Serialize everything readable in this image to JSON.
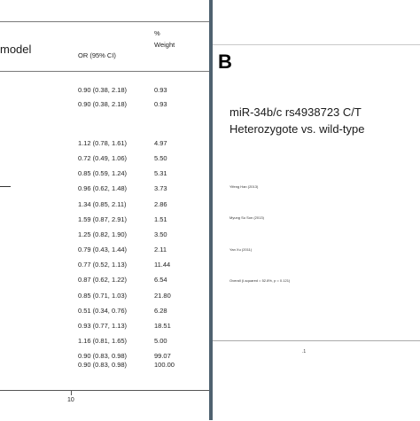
{
  "panel_a": {
    "model_label": "model",
    "col_or_header": "OR (95% CI)",
    "col_weight_header": [
      "%",
      "Weight"
    ]
  },
  "chart_data": [
    {
      "type": "table",
      "panel": "A",
      "columns": [
        "OR (95% CI)",
        "% Weight"
      ],
      "rows": [
        {
          "or": "0.90 (0.38, 2.18)",
          "weight": "0.93"
        },
        {
          "or": "0.90 (0.38, 2.18)",
          "weight": "0.93"
        },
        {
          "or": "1.12 (0.78, 1.61)",
          "weight": "4.97"
        },
        {
          "or": "0.72 (0.49, 1.06)",
          "weight": "5.50"
        },
        {
          "or": "0.85 (0.59, 1.24)",
          "weight": "5.31"
        },
        {
          "or": "0.96 (0.62, 1.48)",
          "weight": "3.73"
        },
        {
          "or": "1.34 (0.85, 2.11)",
          "weight": "2.86"
        },
        {
          "or": "1.59 (0.87, 2.91)",
          "weight": "1.51"
        },
        {
          "or": "1.25 (0.82, 1.90)",
          "weight": "3.50"
        },
        {
          "or": "0.79 (0.43, 1.44)",
          "weight": "2.11"
        },
        {
          "or": "0.77 (0.52, 1.13)",
          "weight": "11.44"
        },
        {
          "or": "0.87 (0.62, 1.22)",
          "weight": "6.54"
        },
        {
          "or": "0.85 (0.71, 1.03)",
          "weight": "21.80"
        },
        {
          "or": "0.51 (0.34, 0.76)",
          "weight": "6.28"
        },
        {
          "or": "0.93 (0.77, 1.13)",
          "weight": "18.51"
        },
        {
          "or": "1.16 (0.81, 1.65)",
          "weight": "5.00"
        },
        {
          "or": "0.90 (0.83, 0.98)",
          "weight": "99.07"
        },
        {
          "or": "0.90 (0.83, 0.98)",
          "weight": "100.00"
        }
      ],
      "x_tick_labels": [
        "10"
      ]
    },
    {
      "type": "scatter",
      "panel": "B",
      "panel_letter": "B",
      "title_lines": [
        "miR-34b/c rs4938723 C/T",
        "Heterozygote vs. wild-type"
      ],
      "study_labels": [
        "Yifeng Han (2013)",
        "Myung Su Son (2013)",
        "Yan Xu (2011)",
        "Overall  (I-squared = 52.8%, p = 0.121)"
      ],
      "x_tick_labels": [
        ".1"
      ]
    }
  ]
}
